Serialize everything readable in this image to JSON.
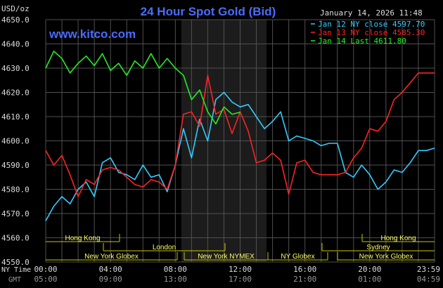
{
  "header": {
    "title": "24 Hour Spot Gold (Bid)",
    "datetime": "January 14, 2026 11:48",
    "brand": "www.kitco.com",
    "unit_label": "USD/oz"
  },
  "bottom_labels": {
    "ny_time": "NY Time",
    "gmt": "GMT"
  },
  "sessions": {
    "hong_kong": "Hong Kong",
    "london": "London",
    "new_york_globex": "New York Globex",
    "new_york_nymex": "New York NYMEX",
    "ny_globex": "NY Globex",
    "sydney": "Sydney"
  },
  "colors": {
    "background": "#000000",
    "grid": "#505050",
    "highlight": "#1c1c1c",
    "title": "#4a6cff",
    "jan12": "#33ccff",
    "jan13": "#ff2222",
    "jan14": "#22ee22",
    "session_line": "#c8c800",
    "session_text": "#ffff66"
  },
  "chart_data": {
    "type": "line",
    "title": "24 Hour Spot Gold (Bid)",
    "ylabel": "USD/oz",
    "ylim": [
      4550,
      4650
    ],
    "yticks": [
      "4650.0",
      "4640.0",
      "4630.0",
      "4620.0",
      "4610.0",
      "4600.0",
      "4590.0",
      "4580.0",
      "4570.0",
      "4560.0",
      "4550.0"
    ],
    "xlim": [
      0,
      24
    ],
    "xticks": [
      "00:00",
      "04:00",
      "08:00",
      "12:00",
      "16:00",
      "20:00",
      "23:59"
    ],
    "xticks_gmt": [
      "05:00",
      "09:00",
      "13:00",
      "17:00",
      "21:00",
      "01:00",
      "04:59"
    ],
    "legend_position": "top-right",
    "legend": [
      "Jan 12 NY close 4597.70",
      "Jan 13 NY close 4585.30",
      "Jan 14 Last 4611.80"
    ],
    "series": [
      {
        "name": "Jan 12 NY close 4597.70",
        "x": [
          0,
          0.5,
          1,
          1.5,
          2,
          2.5,
          3,
          3.5,
          4,
          4.5,
          5,
          5.5,
          6,
          6.5,
          7,
          7.5,
          8,
          8.5,
          9,
          9.5,
          10,
          10.5,
          11,
          11.5,
          12,
          12.5,
          13,
          13.5,
          14,
          14.5,
          15,
          15.5,
          16,
          16.5,
          17,
          17.5,
          18,
          18.5,
          19,
          19.5,
          20,
          20.5,
          21,
          21.5,
          22,
          22.5,
          23,
          23.5,
          24
        ],
        "values": [
          4567,
          4573,
          4577,
          4574,
          4580,
          4583,
          4577,
          4591,
          4593,
          4587,
          4586,
          4584,
          4590,
          4585,
          4586,
          4579,
          4590,
          4605,
          4593,
          4609,
          4600,
          4617,
          4620,
          4616,
          4614,
          4615,
          4610,
          4605,
          4608,
          4612,
          4600,
          4602,
          4601,
          4600,
          4598,
          4599,
          4599,
          4587,
          4585,
          4590,
          4586,
          4580,
          4583,
          4588,
          4587,
          4591,
          4596,
          4596,
          4597
        ]
      },
      {
        "name": "Jan 13 NY close 4585.30",
        "x": [
          0,
          0.5,
          1,
          1.5,
          2,
          2.5,
          3,
          3.5,
          4,
          4.5,
          5,
          5.5,
          6,
          6.5,
          7,
          7.5,
          8,
          8.5,
          9,
          9.5,
          10,
          10.5,
          11,
          11.5,
          12,
          12.5,
          13,
          13.5,
          14,
          14.5,
          15,
          15.5,
          16,
          16.5,
          17,
          17.5,
          18,
          18.5,
          19,
          19.5,
          20,
          20.5,
          21,
          21.5,
          22,
          22.5,
          23,
          23.5,
          24
        ],
        "values": [
          4596,
          4590,
          4594,
          4586,
          4577,
          4584,
          4582,
          4588,
          4589,
          4588,
          4585,
          4582,
          4581,
          4584,
          4583,
          4580,
          4590,
          4611,
          4612,
          4606,
          4627,
          4611,
          4613,
          4603,
          4612,
          4604,
          4591,
          4592,
          4595,
          4592,
          4578,
          4591,
          4592,
          4587,
          4586,
          4586,
          4586,
          4587,
          4593,
          4597,
          4605,
          4604,
          4608,
          4617,
          4620,
          4624,
          4628,
          4628,
          4628
        ]
      },
      {
        "name": "Jan 14 Last 4611.80",
        "x": [
          0,
          0.5,
          1,
          1.5,
          2,
          2.5,
          3,
          3.5,
          4,
          4.5,
          5,
          5.5,
          6,
          6.5,
          7,
          7.5,
          8,
          8.5,
          9,
          9.5,
          10,
          10.5,
          11,
          11.5,
          12
        ],
        "values": [
          4630,
          4637,
          4634,
          4628,
          4632,
          4635,
          4631,
          4636,
          4629,
          4632,
          4627,
          4633,
          4630,
          4636,
          4630,
          4634,
          4630,
          4627,
          4617,
          4621,
          4612,
          4607,
          4614,
          4611,
          4611.8
        ]
      }
    ],
    "sessions": [
      {
        "name": "Hong Kong",
        "rows": "top"
      },
      {
        "name": "London",
        "rows": "middle"
      },
      {
        "name": "New York Globex",
        "rows": "bottom"
      },
      {
        "name": "New York NYMEX",
        "rows": "bottom"
      },
      {
        "name": "NY Globex",
        "rows": "bottom"
      },
      {
        "name": "Sydney",
        "rows": "middle"
      }
    ]
  }
}
